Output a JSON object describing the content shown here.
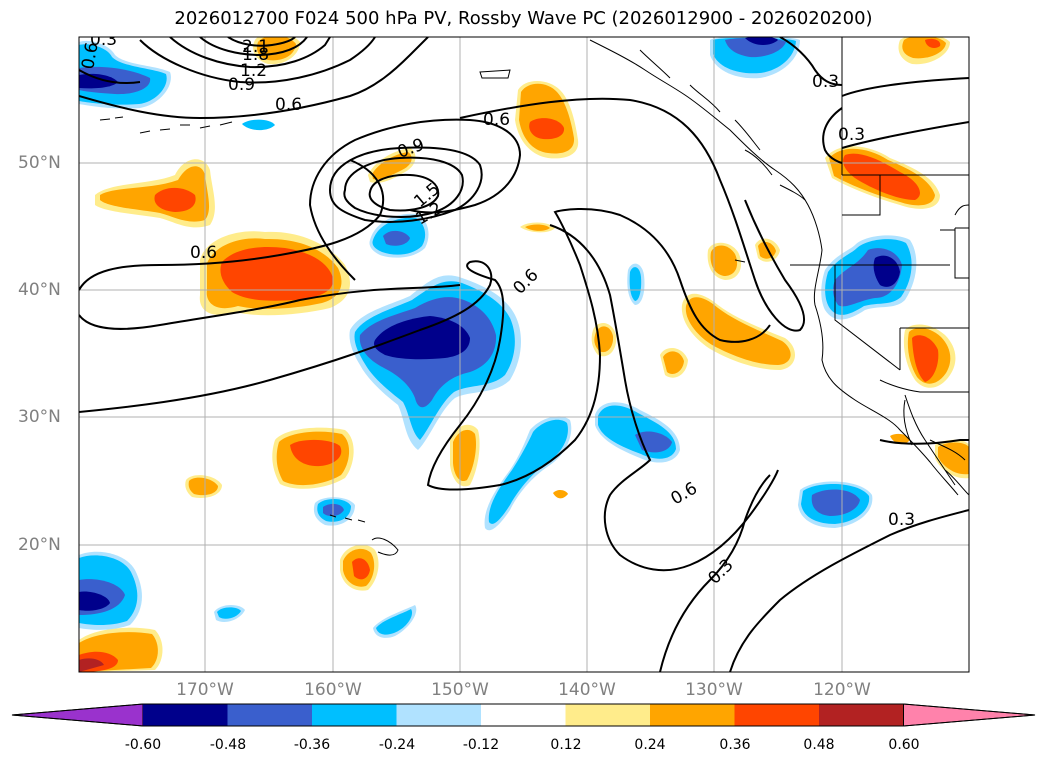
{
  "title": "2026012700 F024 500 hPa PV, Rossby Wave PC (2026012900 - 2026020200)",
  "longitude_labels": [
    "170°W",
    "160°W",
    "150°W",
    "140°W",
    "130°W",
    "120°W"
  ],
  "latitude_labels": [
    "50°N",
    "40°N",
    "30°N",
    "20°N"
  ],
  "contour_labels": [
    "0.9",
    "1.2",
    "1.8",
    "2.1",
    "0.6",
    "0.6",
    "0.9",
    "1.5",
    "1.2",
    "0.6",
    "0.6",
    "0.6",
    "0.3",
    "0.3",
    "0.3",
    "0.3",
    "0.6",
    "0.3",
    "0.6"
  ],
  "colorbar": {
    "colors": [
      "#9a32cd",
      "#00008b",
      "#3a5fcd",
      "#00bfff",
      "#b0e2ff",
      "#ffffff",
      "#ffec8b",
      "#ffa500",
      "#ff4500",
      "#b22222",
      "#ff82ab"
    ],
    "ticks": [
      "-0.60",
      "-0.48",
      "-0.36",
      "-0.24",
      "-0.12",
      "0.12",
      "0.24",
      "0.36",
      "0.48",
      "0.60"
    ]
  },
  "colors": {
    "neg_lightest": "#b0e2ff",
    "neg_light": "#00bfff",
    "neg_mid": "#3a5fcd",
    "neg_dark": "#00008b",
    "pos_lightest": "#ffec8b",
    "pos_light": "#ffa500",
    "pos_mid": "#ff4500",
    "pos_dark": "#b22222",
    "gridline": "#b0b0b0",
    "contour": "#000000"
  }
}
